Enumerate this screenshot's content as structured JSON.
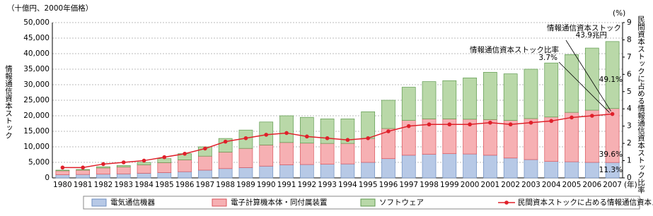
{
  "chart_data": {
    "type": "bar",
    "stacked": true,
    "unit_label": "（十億円、2000年価格）",
    "y2_unit_label": "(%)",
    "x_unit_label": "(年)",
    "ylabel": "情報通信資本ストック",
    "y2label": "民間資本ストックに占める情報通信資本ストック比率",
    "categories": [
      "1980",
      "1981",
      "1982",
      "1983",
      "1984",
      "1985",
      "1986",
      "1987",
      "1988",
      "1989",
      "1990",
      "1991",
      "1992",
      "1993",
      "1994",
      "1995",
      "1996",
      "1997",
      "1998",
      "1999",
      "2000",
      "2001",
      "2002",
      "2003",
      "2004",
      "2005",
      "2006",
      "2007"
    ],
    "series": [
      {
        "name": "電気通信機器",
        "type": "bar",
        "color": "#b7c9e6",
        "stroke": "#6f8fc0",
        "values": [
          1000,
          1100,
          1200,
          1300,
          1500,
          1700,
          2000,
          2500,
          3000,
          3300,
          3800,
          4200,
          4300,
          4400,
          4500,
          5000,
          6200,
          7300,
          7600,
          7800,
          7700,
          7300,
          6400,
          5900,
          5300,
          5200,
          5000,
          4960
        ]
      },
      {
        "name": "電子計算機本体・同付属装置",
        "type": "bar",
        "color": "#f6b0b3",
        "stroke": "#d9535b",
        "values": [
          1300,
          1400,
          2000,
          2200,
          2700,
          3200,
          3800,
          4500,
          5300,
          6200,
          6800,
          7200,
          6900,
          6700,
          6600,
          7700,
          9700,
          11200,
          11400,
          11200,
          11200,
          11500,
          12100,
          13200,
          14300,
          15900,
          16800,
          17380
        ]
      },
      {
        "name": "ソフトウェア",
        "type": "bar",
        "color": "#b9d8a8",
        "stroke": "#5f9a4f",
        "values": [
          200,
          200,
          400,
          500,
          800,
          1300,
          2000,
          3000,
          4400,
          5900,
          7400,
          8600,
          8300,
          7900,
          7900,
          8600,
          9100,
          10700,
          12000,
          12300,
          13300,
          15200,
          15000,
          15900,
          17400,
          18600,
          20000,
          21560
        ]
      },
      {
        "name": "民間資本ストックに占める情報通信資本ストック比率",
        "type": "line",
        "axis": "y2",
        "color": "#e0202a",
        "values": [
          0.6,
          0.6,
          0.8,
          0.9,
          1.0,
          1.2,
          1.4,
          1.7,
          2.1,
          2.3,
          2.5,
          2.6,
          2.4,
          2.3,
          2.2,
          2.3,
          2.7,
          3.0,
          3.1,
          3.1,
          3.1,
          3.2,
          3.1,
          3.2,
          3.3,
          3.5,
          3.6,
          3.7
        ]
      }
    ],
    "ylim": [
      0,
      50000
    ],
    "yticks": [
      0,
      {
        "value": 5000,
        "label": "5,000"
      },
      {
        "value": 10000,
        "label": "10,000"
      },
      {
        "value": 15000,
        "label": "15,000"
      },
      {
        "value": 20000,
        "label": "20,000"
      },
      {
        "value": 25000,
        "label": "25,000"
      },
      {
        "value": 30000,
        "label": "30,000"
      },
      {
        "value": 35000,
        "label": "35,000"
      },
      {
        "value": 40000,
        "label": "40,000"
      },
      {
        "value": 45000,
        "label": "45,000"
      },
      {
        "value": 50000,
        "label": "50,000"
      }
    ],
    "y2lim": [
      0,
      9
    ],
    "y2ticks": [
      0,
      1,
      2,
      3,
      4,
      5,
      6,
      7,
      8,
      9
    ],
    "grid": true,
    "legend": "bottom",
    "annotations": [
      "情報通信資本ストック",
      "43.9兆円",
      "情報通信資本ストック比率",
      "3.7%",
      "49.1%",
      "39.6%",
      "11.3%"
    ]
  }
}
